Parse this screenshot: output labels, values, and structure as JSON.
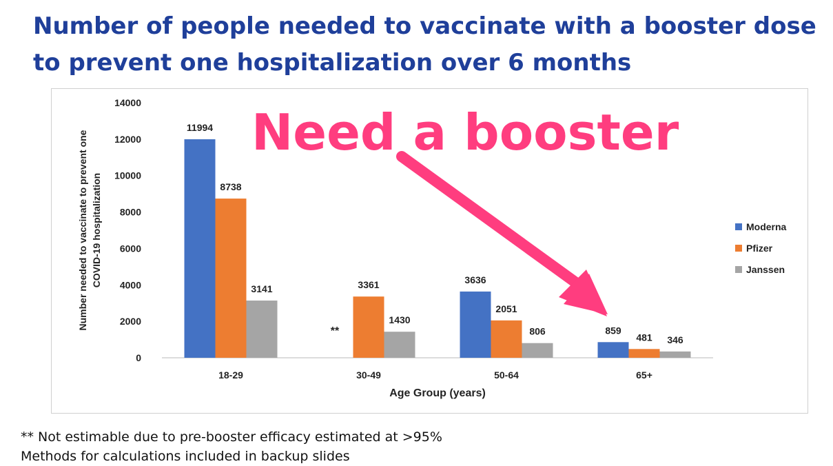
{
  "title_line1": "Number of people needed to vaccinate with a booster dose",
  "title_line2": "to prevent one hospitalization over 6 months",
  "callout_text": "Need a booster",
  "callout_color": "#ff3d7f",
  "footnotes": [
    "** Not estimable due to pre-booster efficacy estimated at >95%",
    "Methods for calculations included in backup slides"
  ],
  "chart_data": {
    "type": "bar",
    "categories": [
      "18-29",
      "30-49",
      "50-64",
      "65+"
    ],
    "series": [
      {
        "name": "Moderna",
        "color": "#4472c4",
        "values": [
          11994,
          null,
          3636,
          859
        ]
      },
      {
        "name": "Pfizer",
        "color": "#ed7d31",
        "values": [
          8738,
          3361,
          2051,
          481
        ]
      },
      {
        "name": "Janssen",
        "color": "#a5a5a5",
        "values": [
          3141,
          1430,
          806,
          346
        ]
      }
    ],
    "missing_marker": "**",
    "xlabel": "Age Group (years)",
    "ylabel_lines": [
      "Number needed to vaccinate to prevent one",
      "COVID-19 hospitalization"
    ],
    "ylim": [
      0,
      14000
    ],
    "yticks": [
      0,
      2000,
      4000,
      6000,
      8000,
      10000,
      12000,
      14000
    ],
    "grid": false,
    "legend_position": "right"
  }
}
